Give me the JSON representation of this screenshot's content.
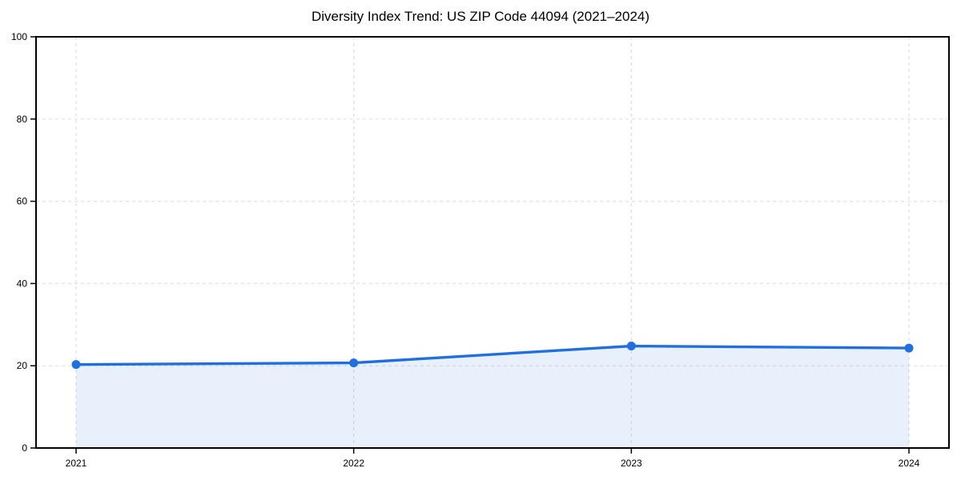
{
  "chart_data": {
    "type": "area",
    "title": "Diversity Index Trend: US ZIP Code 44094 (2021–2024)",
    "categories": [
      "2021",
      "2022",
      "2023",
      "2024"
    ],
    "series": [
      {
        "name": "Diversity Index",
        "values": [
          20.3,
          20.7,
          24.8,
          24.3
        ]
      }
    ],
    "xlabel": "",
    "ylabel": "",
    "ylim": [
      0,
      100
    ],
    "yticks": [
      0,
      20,
      40,
      60,
      80,
      100
    ],
    "grid": "dashed-both-axes",
    "legend_position": "none",
    "colors": {
      "line": "#1f6fe0",
      "marker": "#1f6fe0",
      "fill": "rgba(31, 111, 224, 0.10)",
      "grid": "#e0e0e0",
      "axis": "#000000",
      "tick_text": "#000000"
    }
  }
}
